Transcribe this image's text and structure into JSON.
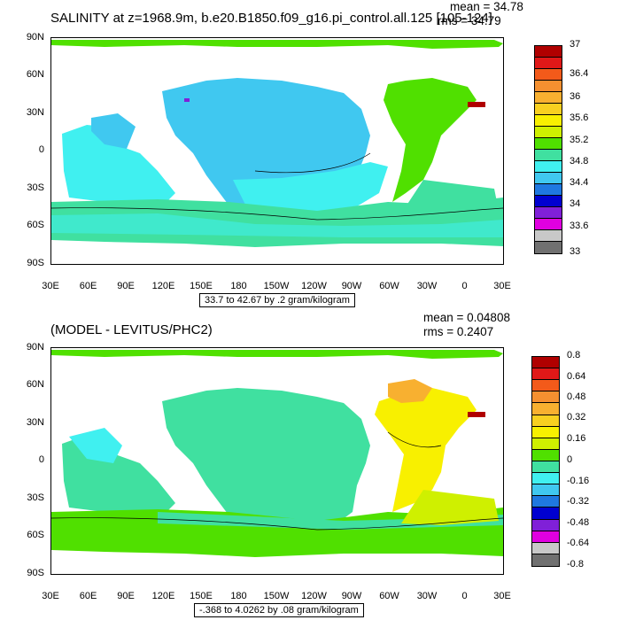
{
  "top": {
    "title": "SALINITY at z=1968.9m, b.e20.B1850.f09_g16.pi_control.all.125 [105-124]",
    "mean": "mean = 34.78",
    "rms": "rms = 34.79",
    "contour_info": "33.7 to 42.67 by .2 gram/kilogram",
    "colorbar_labels": [
      "37",
      "36.4",
      "36",
      "35.6",
      "35.2",
      "34.8",
      "34.4",
      "34",
      "33.6",
      "33"
    ],
    "colorbar_colors": [
      "#b00000",
      "#e01818",
      "#f35a1a",
      "#f59030",
      "#f8b030",
      "#f8d020",
      "#f8f000",
      "#cff000",
      "#50e000",
      "#40e0a0",
      "#40f0f0",
      "#40c8f0",
      "#1f78e0",
      "#0000d0",
      "#8020d8",
      "#e000e0",
      "#c8c8c8",
      "#707070"
    ]
  },
  "bottom": {
    "title": "(MODEL - LEVITUS/PHC2)",
    "mean": "mean = 0.04808",
    "rms": "rms = 0.2407",
    "contour_info": "-.368 to 4.0262 by .08 gram/kilogram",
    "colorbar_labels": [
      "0.8",
      "0.64",
      "0.48",
      "0.32",
      "0.16",
      "0",
      "-0.16",
      "-0.32",
      "-0.48",
      "-0.64",
      "-0.8"
    ],
    "colorbar_colors": [
      "#b00000",
      "#e01818",
      "#f35a1a",
      "#f59030",
      "#f8b030",
      "#f8d020",
      "#f8f000",
      "#cff000",
      "#50e000",
      "#40e0a0",
      "#40f0f0",
      "#40c8f0",
      "#1f78e0",
      "#0000d0",
      "#8020d8",
      "#e000e0",
      "#c8c8c8",
      "#707070"
    ]
  },
  "axes": {
    "lat_labels": [
      "90N",
      "60N",
      "30N",
      "0",
      "30S",
      "60S",
      "90S"
    ],
    "lon_labels": [
      "30E",
      "60E",
      "90E",
      "120E",
      "150E",
      "180",
      "150W",
      "120W",
      "90W",
      "60W",
      "30W",
      "0",
      "30E"
    ]
  }
}
